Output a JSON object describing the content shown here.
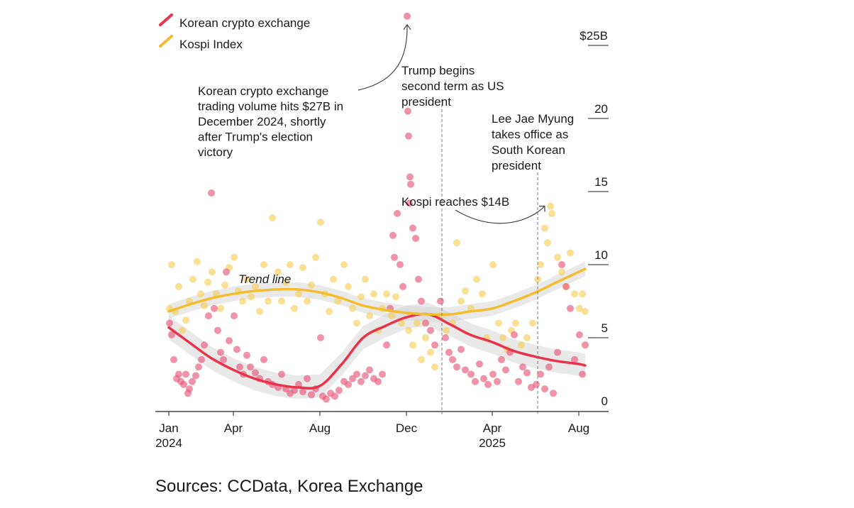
{
  "chart_data": {
    "type": "scatter",
    "ylabel_top": "$25B",
    "ylim": [
      0,
      25
    ],
    "yticks": [
      {
        "value": 0,
        "label": "0"
      },
      {
        "value": 5,
        "label": "5"
      },
      {
        "value": 10,
        "label": "10"
      },
      {
        "value": 15,
        "label": "15"
      },
      {
        "value": 20,
        "label": "20"
      },
      {
        "value": 25,
        "label": "$25B"
      }
    ],
    "xlim": [
      "2023-12-14",
      "2025-08-28"
    ],
    "xticks": [
      {
        "date": "2024-01-01",
        "label": "Jan",
        "sublabel": "2024"
      },
      {
        "date": "2024-04-01",
        "label": "Apr",
        "sublabel": ""
      },
      {
        "date": "2024-08-01",
        "label": "Aug",
        "sublabel": ""
      },
      {
        "date": "2024-12-01",
        "label": "Dec",
        "sublabel": ""
      },
      {
        "date": "2025-04-01",
        "label": "Apr",
        "sublabel": "2025"
      },
      {
        "date": "2025-08-01",
        "label": "Aug",
        "sublabel": ""
      }
    ],
    "grid": false,
    "legend_placement": "top-left",
    "trend_label": "Trend line",
    "series": [
      {
        "name": "Korean crypto exchange",
        "color": "#e8334a",
        "point_color": "#e8587a",
        "points": [
          [
            "2024-01-02",
            6.0
          ],
          [
            "2024-01-05",
            5.2
          ],
          [
            "2024-01-08",
            3.5
          ],
          [
            "2024-01-12",
            2.2
          ],
          [
            "2024-01-15",
            2.5
          ],
          [
            "2024-01-18",
            2.0
          ],
          [
            "2024-01-22",
            1.8
          ],
          [
            "2024-01-25",
            2.5
          ],
          [
            "2024-01-28",
            1.2
          ],
          [
            "2024-01-30",
            1.5
          ],
          [
            "2024-02-03",
            2.0
          ],
          [
            "2024-02-08",
            2.4
          ],
          [
            "2024-02-12",
            3.0
          ],
          [
            "2024-02-16",
            3.5
          ],
          [
            "2024-02-20",
            4.5
          ],
          [
            "2024-02-26",
            6.5
          ],
          [
            "2024-03-01",
            14.9
          ],
          [
            "2024-03-05",
            7.0
          ],
          [
            "2024-03-10",
            5.5
          ],
          [
            "2024-03-14",
            4.0
          ],
          [
            "2024-03-18",
            3.5
          ],
          [
            "2024-03-22",
            9.5
          ],
          [
            "2024-03-26",
            4.8
          ],
          [
            "2024-04-02",
            6.5
          ],
          [
            "2024-04-06",
            4.2
          ],
          [
            "2024-04-10",
            3.0
          ],
          [
            "2024-04-15",
            2.5
          ],
          [
            "2024-04-20",
            3.8
          ],
          [
            "2024-04-25",
            3.0
          ],
          [
            "2024-05-02",
            2.6
          ],
          [
            "2024-05-08",
            2.2
          ],
          [
            "2024-05-14",
            3.5
          ],
          [
            "2024-05-20",
            2.0
          ],
          [
            "2024-05-26",
            1.8
          ],
          [
            "2024-06-03",
            1.6
          ],
          [
            "2024-06-08",
            2.5
          ],
          [
            "2024-06-14",
            1.5
          ],
          [
            "2024-06-20",
            1.2
          ],
          [
            "2024-06-26",
            1.4
          ],
          [
            "2024-07-02",
            1.8
          ],
          [
            "2024-07-08",
            1.3
          ],
          [
            "2024-07-14",
            2.2
          ],
          [
            "2024-07-20",
            1.1
          ],
          [
            "2024-07-26",
            1.5
          ],
          [
            "2024-08-02",
            5.0
          ],
          [
            "2024-08-05",
            1.0
          ],
          [
            "2024-08-10",
            0.8
          ],
          [
            "2024-08-16",
            1.2
          ],
          [
            "2024-08-22",
            1.0
          ],
          [
            "2024-08-28",
            1.4
          ],
          [
            "2024-09-04",
            2.0
          ],
          [
            "2024-09-10",
            1.8
          ],
          [
            "2024-09-16",
            2.2
          ],
          [
            "2024-09-22",
            2.5
          ],
          [
            "2024-09-28",
            2.0
          ],
          [
            "2024-10-04",
            2.4
          ],
          [
            "2024-10-10",
            2.8
          ],
          [
            "2024-10-16",
            2.2
          ],
          [
            "2024-10-22",
            2.0
          ],
          [
            "2024-10-28",
            2.5
          ],
          [
            "2024-11-03",
            4.5
          ],
          [
            "2024-11-08",
            7.0
          ],
          [
            "2024-11-12",
            12.0
          ],
          [
            "2024-11-14",
            10.5
          ],
          [
            "2024-11-18",
            13.5
          ],
          [
            "2024-11-22",
            10.0
          ],
          [
            "2024-11-26",
            8.5
          ],
          [
            "2024-12-02",
            27.0
          ],
          [
            "2024-12-03",
            20.5
          ],
          [
            "2024-12-04",
            18.8
          ],
          [
            "2024-12-06",
            16.0
          ],
          [
            "2024-12-07",
            15.5
          ],
          [
            "2024-12-05",
            14.2
          ],
          [
            "2024-12-10",
            12.5
          ],
          [
            "2024-12-14",
            11.8
          ],
          [
            "2024-12-18",
            9.0
          ],
          [
            "2024-12-22",
            7.5
          ],
          [
            "2024-12-28",
            6.0
          ],
          [
            "2025-01-04",
            5.5
          ],
          [
            "2025-01-10",
            4.5
          ],
          [
            "2025-01-18",
            7.5
          ],
          [
            "2025-01-25",
            5.0
          ],
          [
            "2025-01-30",
            4.0
          ],
          [
            "2025-02-04",
            3.5
          ],
          [
            "2025-02-10",
            3.0
          ],
          [
            "2025-02-16",
            4.2
          ],
          [
            "2025-02-22",
            2.8
          ],
          [
            "2025-03-02",
            2.5
          ],
          [
            "2025-03-08",
            2.0
          ],
          [
            "2025-03-14",
            3.2
          ],
          [
            "2025-03-20",
            2.2
          ],
          [
            "2025-03-26",
            1.8
          ],
          [
            "2025-04-02",
            2.5
          ],
          [
            "2025-04-08",
            2.0
          ],
          [
            "2025-04-14",
            3.5
          ],
          [
            "2025-04-20",
            2.8
          ],
          [
            "2025-04-26",
            4.0
          ],
          [
            "2025-05-02",
            5.2
          ],
          [
            "2025-05-08",
            2.0
          ],
          [
            "2025-05-14",
            3.0
          ],
          [
            "2025-05-20",
            2.6
          ],
          [
            "2025-05-26",
            1.6
          ],
          [
            "2025-06-02",
            1.8
          ],
          [
            "2025-06-08",
            2.5
          ],
          [
            "2025-06-14",
            1.5
          ],
          [
            "2025-06-20",
            3.0
          ],
          [
            "2025-06-26",
            1.2
          ],
          [
            "2025-07-02",
            4.0
          ],
          [
            "2025-07-08",
            10.0
          ],
          [
            "2025-07-14",
            8.5
          ],
          [
            "2025-07-20",
            7.0
          ],
          [
            "2025-07-26",
            3.5
          ],
          [
            "2025-08-02",
            5.2
          ],
          [
            "2025-08-06",
            2.5
          ],
          [
            "2025-08-10",
            4.5
          ]
        ],
        "trend": [
          [
            "2024-01-01",
            5.7
          ],
          [
            "2024-02-01",
            4.6
          ],
          [
            "2024-03-01",
            3.6
          ],
          [
            "2024-04-01",
            2.8
          ],
          [
            "2024-05-01",
            2.2
          ],
          [
            "2024-06-01",
            1.8
          ],
          [
            "2024-07-01",
            1.6
          ],
          [
            "2024-08-01",
            1.7
          ],
          [
            "2024-09-01",
            3.2
          ],
          [
            "2024-10-01",
            5.0
          ],
          [
            "2024-11-01",
            5.8
          ],
          [
            "2024-12-01",
            6.4
          ],
          [
            "2025-01-01",
            6.6
          ],
          [
            "2025-02-01",
            5.9
          ],
          [
            "2025-03-01",
            5.2
          ],
          [
            "2025-04-01",
            4.7
          ],
          [
            "2025-05-01",
            4.1
          ],
          [
            "2025-06-01",
            3.7
          ],
          [
            "2025-07-01",
            3.4
          ],
          [
            "2025-08-01",
            3.2
          ],
          [
            "2025-08-10",
            3.1
          ]
        ],
        "band": 0.8
      },
      {
        "name": "Kospi Index",
        "color": "#f3bd2e",
        "point_color": "#f7cf5a",
        "points": [
          [
            "2024-01-02",
            7.0
          ],
          [
            "2024-01-05",
            10.0
          ],
          [
            "2024-01-10",
            6.8
          ],
          [
            "2024-01-15",
            8.5
          ],
          [
            "2024-01-20",
            5.5
          ],
          [
            "2024-01-25",
            6.2
          ],
          [
            "2024-01-30",
            7.5
          ],
          [
            "2024-02-04",
            9.0
          ],
          [
            "2024-02-10",
            10.2
          ],
          [
            "2024-02-15",
            8.0
          ],
          [
            "2024-02-20",
            7.2
          ],
          [
            "2024-02-25",
            8.8
          ],
          [
            "2024-03-02",
            9.5
          ],
          [
            "2024-03-08",
            8.0
          ],
          [
            "2024-03-14",
            7.0
          ],
          [
            "2024-03-20",
            8.6
          ],
          [
            "2024-03-26",
            9.8
          ],
          [
            "2024-04-02",
            10.5
          ],
          [
            "2024-04-08",
            8.2
          ],
          [
            "2024-04-14",
            7.5
          ],
          [
            "2024-04-20",
            9.0
          ],
          [
            "2024-04-26",
            7.8
          ],
          [
            "2024-05-02",
            8.5
          ],
          [
            "2024-05-08",
            6.8
          ],
          [
            "2024-05-14",
            10.0
          ],
          [
            "2024-05-20",
            7.5
          ],
          [
            "2024-05-26",
            13.2
          ],
          [
            "2024-06-03",
            9.5
          ],
          [
            "2024-06-08",
            7.5
          ],
          [
            "2024-06-14",
            8.8
          ],
          [
            "2024-06-20",
            10.0
          ],
          [
            "2024-06-26",
            7.0
          ],
          [
            "2024-07-02",
            8.0
          ],
          [
            "2024-07-08",
            9.8
          ],
          [
            "2024-07-14",
            7.5
          ],
          [
            "2024-07-20",
            8.6
          ],
          [
            "2024-07-26",
            10.5
          ],
          [
            "2024-08-02",
            12.9
          ],
          [
            "2024-08-08",
            8.0
          ],
          [
            "2024-08-14",
            6.8
          ],
          [
            "2024-08-20",
            9.0
          ],
          [
            "2024-08-26",
            7.5
          ],
          [
            "2024-09-04",
            10.0
          ],
          [
            "2024-09-10",
            8.5
          ],
          [
            "2024-09-16",
            7.0
          ],
          [
            "2024-09-22",
            6.0
          ],
          [
            "2024-09-28",
            7.8
          ],
          [
            "2024-10-04",
            9.0
          ],
          [
            "2024-10-10",
            6.5
          ],
          [
            "2024-10-16",
            8.0
          ],
          [
            "2024-10-22",
            5.5
          ],
          [
            "2024-10-28",
            7.0
          ],
          [
            "2024-11-03",
            8.0
          ],
          [
            "2024-11-10",
            6.5
          ],
          [
            "2024-11-16",
            7.8
          ],
          [
            "2024-11-24",
            6.0
          ],
          [
            "2024-12-04",
            5.5
          ],
          [
            "2024-12-10",
            4.5
          ],
          [
            "2024-12-16",
            6.0
          ],
          [
            "2024-12-22",
            3.5
          ],
          [
            "2024-12-28",
            5.0
          ],
          [
            "2025-01-04",
            4.0
          ],
          [
            "2025-01-10",
            3.0
          ],
          [
            "2025-01-18",
            6.5
          ],
          [
            "2025-01-26",
            5.5
          ],
          [
            "2025-02-04",
            6.0
          ],
          [
            "2025-02-10",
            11.5
          ],
          [
            "2025-02-16",
            7.5
          ],
          [
            "2025-02-22",
            8.2
          ],
          [
            "2025-03-02",
            7.0
          ],
          [
            "2025-03-10",
            9.0
          ],
          [
            "2025-03-18",
            8.0
          ],
          [
            "2025-03-24",
            5.0
          ],
          [
            "2025-04-02",
            10.0
          ],
          [
            "2025-04-10",
            6.0
          ],
          [
            "2025-04-16",
            5.0
          ],
          [
            "2025-04-22",
            4.2
          ],
          [
            "2025-04-28",
            5.5
          ],
          [
            "2025-05-04",
            6.0
          ],
          [
            "2025-05-12",
            4.5
          ],
          [
            "2025-05-20",
            5.0
          ],
          [
            "2025-05-28",
            6.0
          ],
          [
            "2025-06-04",
            9.0
          ],
          [
            "2025-06-08",
            10.0
          ],
          [
            "2025-06-14",
            12.5
          ],
          [
            "2025-06-18",
            11.5
          ],
          [
            "2025-06-22",
            14.0
          ],
          [
            "2025-06-24",
            13.5
          ],
          [
            "2025-07-02",
            10.5
          ],
          [
            "2025-07-08",
            9.5
          ],
          [
            "2025-07-14",
            8.5
          ],
          [
            "2025-07-20",
            10.8
          ],
          [
            "2025-07-26",
            8.0
          ],
          [
            "2025-08-02",
            7.0
          ],
          [
            "2025-08-06",
            8.0
          ],
          [
            "2025-08-10",
            6.8
          ]
        ],
        "trend": [
          [
            "2024-01-01",
            6.8
          ],
          [
            "2024-02-01",
            7.3
          ],
          [
            "2024-03-01",
            7.7
          ],
          [
            "2024-04-01",
            8.0
          ],
          [
            "2024-05-01",
            8.2
          ],
          [
            "2024-06-01",
            8.3
          ],
          [
            "2024-07-01",
            8.3
          ],
          [
            "2024-08-01",
            8.1
          ],
          [
            "2024-09-01",
            7.7
          ],
          [
            "2024-10-01",
            7.2
          ],
          [
            "2024-11-01",
            6.9
          ],
          [
            "2024-12-01",
            6.7
          ],
          [
            "2025-01-01",
            6.6
          ],
          [
            "2025-02-01",
            6.6
          ],
          [
            "2025-03-01",
            6.8
          ],
          [
            "2025-04-01",
            7.0
          ],
          [
            "2025-05-01",
            7.5
          ],
          [
            "2025-06-01",
            8.1
          ],
          [
            "2025-07-01",
            8.8
          ],
          [
            "2025-08-01",
            9.5
          ],
          [
            "2025-08-10",
            9.7
          ]
        ],
        "band": 0.5
      }
    ],
    "events": [
      {
        "date": "2025-01-20",
        "label_lines": [
          "Trump begins",
          "second term as US",
          "president"
        ]
      },
      {
        "date": "2025-06-04",
        "label_lines": [
          "Lee Jae Myung",
          "takes office as",
          "South Korean",
          "president"
        ]
      }
    ],
    "annotations": [
      {
        "label_lines": [
          "Korean crypto exchange",
          "trading volume hits $27B in",
          "December 2024, shortly",
          "after Trump's election",
          "victory"
        ],
        "target_date": "2024-12-02",
        "target_value": 27.0
      },
      {
        "label_lines": [
          "Kospi reaches $14B"
        ],
        "target_date": "2025-06-22",
        "target_value": 14.0
      }
    ]
  },
  "footer": {
    "sources": "Sources: CCData, Korea Exchange"
  }
}
